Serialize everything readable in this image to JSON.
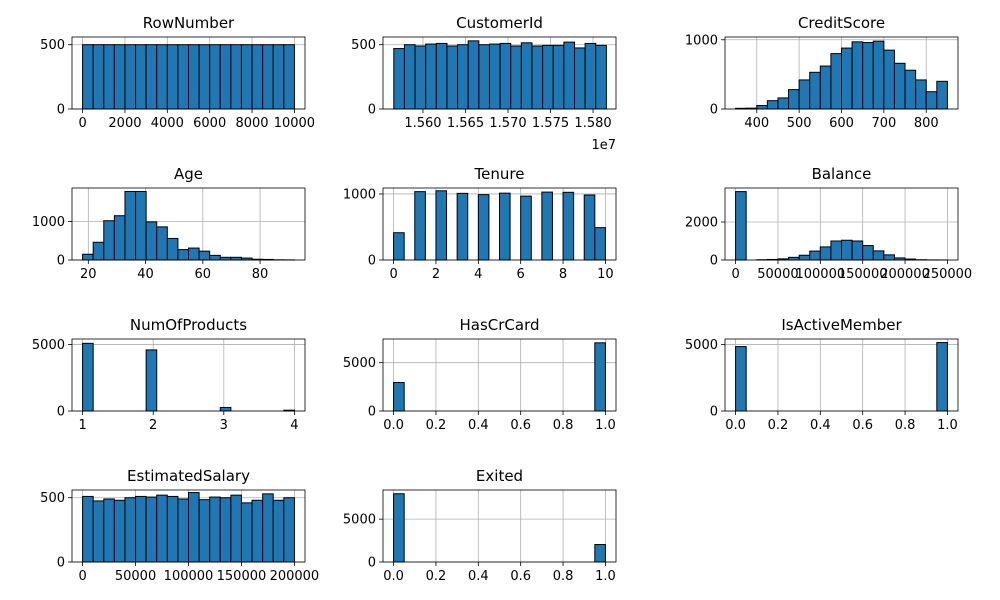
{
  "chart_data": [
    {
      "type": "bar",
      "title": "RowNumber",
      "xlim": [
        -500,
        10500
      ],
      "ylim": [
        0,
        560
      ],
      "xticks": [
        0,
        2000,
        4000,
        6000,
        8000,
        10000
      ],
      "xtick_labels": [
        "0",
        "2000",
        "4000",
        "6000",
        "8000",
        "10000"
      ],
      "yticks": [
        0,
        500
      ],
      "ytick_labels": [
        "0",
        "500"
      ],
      "grid": true,
      "bins": [
        [
          0,
          500,
          500
        ],
        [
          500,
          1000,
          500
        ],
        [
          1000,
          1500,
          500
        ],
        [
          1500,
          2000,
          500
        ],
        [
          2000,
          2500,
          500
        ],
        [
          2500,
          3000,
          500
        ],
        [
          3000,
          3500,
          500
        ],
        [
          3500,
          4000,
          500
        ],
        [
          4000,
          4500,
          500
        ],
        [
          4500,
          5000,
          500
        ],
        [
          5000,
          5500,
          500
        ],
        [
          5500,
          6000,
          500
        ],
        [
          6000,
          6500,
          500
        ],
        [
          6500,
          7000,
          500
        ],
        [
          7000,
          7500,
          500
        ],
        [
          7500,
          8000,
          500
        ],
        [
          8000,
          8500,
          500
        ],
        [
          8500,
          9000,
          500
        ],
        [
          9000,
          9500,
          500
        ],
        [
          9500,
          10000,
          500
        ]
      ]
    },
    {
      "type": "bar",
      "title": "CustomerId",
      "offset_label": "1e7",
      "xlim": [
        15553000,
        15827000
      ],
      "ylim": [
        0,
        560
      ],
      "xticks": [
        15600000,
        15650000,
        15700000,
        15750000,
        15800000
      ],
      "xtick_labels": [
        "1.560",
        "1.565",
        "1.570",
        "1.575",
        "1.580"
      ],
      "yticks": [
        0,
        500
      ],
      "ytick_labels": [
        "0",
        "500"
      ],
      "grid": true,
      "bins": [
        [
          15565700,
          15578200,
          470
        ],
        [
          15578200,
          15590700,
          500
        ],
        [
          15590700,
          15603200,
          490
        ],
        [
          15603200,
          15615700,
          505
        ],
        [
          15615700,
          15628200,
          510
        ],
        [
          15628200,
          15640700,
          490
        ],
        [
          15640700,
          15653200,
          500
        ],
        [
          15653200,
          15665700,
          530
        ],
        [
          15665700,
          15678200,
          500
        ],
        [
          15678200,
          15690700,
          505
        ],
        [
          15690700,
          15703200,
          510
        ],
        [
          15703200,
          15715700,
          490
        ],
        [
          15715700,
          15728200,
          515
        ],
        [
          15728200,
          15740700,
          490
        ],
        [
          15740700,
          15753200,
          495
        ],
        [
          15753200,
          15765700,
          495
        ],
        [
          15765700,
          15778200,
          520
        ],
        [
          15778200,
          15790700,
          475
        ],
        [
          15790700,
          15803200,
          510
        ],
        [
          15803200,
          15815700,
          495
        ]
      ]
    },
    {
      "type": "bar",
      "title": "CreditScore",
      "xlim": [
        325,
        875
      ],
      "ylim": [
        0,
        1040
      ],
      "xticks": [
        400,
        500,
        600,
        700,
        800
      ],
      "xtick_labels": [
        "400",
        "500",
        "600",
        "700",
        "800"
      ],
      "yticks": [
        0,
        1000
      ],
      "ytick_labels": [
        "0",
        "1000"
      ],
      "grid": true,
      "bins": [
        [
          350,
          375,
          10
        ],
        [
          375,
          400,
          12
        ],
        [
          400,
          425,
          50
        ],
        [
          425,
          450,
          120
        ],
        [
          450,
          475,
          160
        ],
        [
          475,
          500,
          280
        ],
        [
          500,
          525,
          420
        ],
        [
          525,
          550,
          530
        ],
        [
          550,
          575,
          620
        ],
        [
          575,
          600,
          800
        ],
        [
          600,
          625,
          880
        ],
        [
          625,
          650,
          970
        ],
        [
          650,
          675,
          960
        ],
        [
          675,
          700,
          980
        ],
        [
          700,
          725,
          850
        ],
        [
          725,
          750,
          660
        ],
        [
          750,
          775,
          560
        ],
        [
          775,
          800,
          420
        ],
        [
          800,
          825,
          250
        ],
        [
          825,
          850,
          400
        ]
      ]
    },
    {
      "type": "bar",
      "title": "Age",
      "xlim": [
        14.3,
        95.7
      ],
      "ylim": [
        0,
        1870
      ],
      "xticks": [
        20,
        40,
        60,
        80
      ],
      "xtick_labels": [
        "20",
        "40",
        "60",
        "80"
      ],
      "yticks": [
        0,
        1000
      ],
      "ytick_labels": [
        "0",
        "1000"
      ],
      "grid": true,
      "bins": [
        [
          18,
          21.7,
          150
        ],
        [
          21.7,
          25.4,
          460
        ],
        [
          25.4,
          29.1,
          1020
        ],
        [
          29.1,
          32.8,
          1150
        ],
        [
          32.8,
          36.5,
          1780
        ],
        [
          36.5,
          40.2,
          1780
        ],
        [
          40.2,
          43.9,
          990
        ],
        [
          43.9,
          47.6,
          860
        ],
        [
          47.6,
          51.3,
          560
        ],
        [
          51.3,
          55.0,
          270
        ],
        [
          55.0,
          58.7,
          310
        ],
        [
          58.7,
          62.4,
          230
        ],
        [
          62.4,
          66.1,
          120
        ],
        [
          66.1,
          69.8,
          70
        ],
        [
          69.8,
          73.5,
          70
        ],
        [
          73.5,
          77.2,
          50
        ],
        [
          77.2,
          80.9,
          20
        ],
        [
          80.9,
          84.6,
          15
        ],
        [
          84.6,
          88.3,
          5
        ],
        [
          88.3,
          92,
          3
        ]
      ]
    },
    {
      "type": "bar",
      "title": "Tenure",
      "xlim": [
        -0.5,
        10.5
      ],
      "ylim": [
        0,
        1090
      ],
      "xticks": [
        0,
        2,
        4,
        6,
        8,
        10
      ],
      "xtick_labels": [
        "0",
        "2",
        "4",
        "6",
        "8",
        "10"
      ],
      "yticks": [
        0,
        1000
      ],
      "ytick_labels": [
        "0",
        "1000"
      ],
      "grid": true,
      "bins": [
        [
          0,
          0.5,
          413
        ],
        [
          1,
          1.5,
          1035
        ],
        [
          2,
          2.5,
          1048
        ],
        [
          3,
          3.5,
          1009
        ],
        [
          4,
          4.5,
          989
        ],
        [
          5,
          5.5,
          1012
        ],
        [
          6,
          6.5,
          967
        ],
        [
          7,
          7.5,
          1028
        ],
        [
          8,
          8.5,
          1025
        ],
        [
          9,
          9.5,
          984
        ],
        [
          9.5,
          10,
          490
        ]
      ]
    },
    {
      "type": "bar",
      "title": "Balance",
      "xlim": [
        -12500,
        262500
      ],
      "ylim": [
        0,
        3790
      ],
      "xticks": [
        0,
        50000,
        100000,
        150000,
        200000,
        250000
      ],
      "xtick_labels": [
        "0",
        "50000",
        "100000",
        "150000",
        "200000",
        "250000"
      ],
      "yticks": [
        0,
        2000
      ],
      "ytick_labels": [
        "0",
        "2000"
      ],
      "grid": true,
      "bins": [
        [
          0,
          12500,
          3600
        ],
        [
          12500,
          25000,
          0
        ],
        [
          25000,
          37500,
          15
        ],
        [
          37500,
          50000,
          30
        ],
        [
          50000,
          62500,
          60
        ],
        [
          62500,
          75000,
          140
        ],
        [
          75000,
          87500,
          250
        ],
        [
          87500,
          100000,
          470
        ],
        [
          100000,
          112500,
          690
        ],
        [
          112500,
          125000,
          1000
        ],
        [
          125000,
          137500,
          1040
        ],
        [
          137500,
          150000,
          1000
        ],
        [
          150000,
          162500,
          760
        ],
        [
          162500,
          175000,
          480
        ],
        [
          175000,
          187500,
          270
        ],
        [
          187500,
          200000,
          110
        ],
        [
          200000,
          212500,
          50
        ],
        [
          212500,
          225000,
          15
        ],
        [
          225000,
          237500,
          5
        ],
        [
          237500,
          250000,
          3
        ]
      ]
    },
    {
      "type": "bar",
      "title": "NumOfProducts",
      "xlim": [
        0.85,
        4.15
      ],
      "ylim": [
        0,
        5410
      ],
      "xticks": [
        1,
        2,
        3,
        4
      ],
      "xtick_labels": [
        "1",
        "2",
        "3",
        "4"
      ],
      "yticks": [
        0,
        5000
      ],
      "ytick_labels": [
        "0",
        "5000"
      ],
      "grid": true,
      "bins": [
        [
          1,
          1.15,
          5084
        ],
        [
          1.9,
          2.05,
          4590
        ],
        [
          2.95,
          3.1,
          266
        ],
        [
          3.85,
          4,
          60
        ]
      ]
    },
    {
      "type": "bar",
      "title": "HasCrCard",
      "xlim": [
        -0.05,
        1.05
      ],
      "ylim": [
        0,
        7450
      ],
      "xticks": [
        0,
        0.2,
        0.4,
        0.6,
        0.8,
        1
      ],
      "xtick_labels": [
        "0.0",
        "0.2",
        "0.4",
        "0.6",
        "0.8",
        "1.0"
      ],
      "yticks": [
        0,
        5000
      ],
      "ytick_labels": [
        "0",
        "5000"
      ],
      "grid": true,
      "bins": [
        [
          0,
          0.05,
          2945
        ],
        [
          0.95,
          1,
          7055
        ]
      ]
    },
    {
      "type": "bar",
      "title": "IsActiveMember",
      "xlim": [
        -0.05,
        1.05
      ],
      "ylim": [
        0,
        5420
      ],
      "xticks": [
        0,
        0.2,
        0.4,
        0.6,
        0.8,
        1
      ],
      "xtick_labels": [
        "0.0",
        "0.2",
        "0.4",
        "0.6",
        "0.8",
        "1.0"
      ],
      "yticks": [
        0,
        5000
      ],
      "ytick_labels": [
        "0",
        "5000"
      ],
      "grid": true,
      "bins": [
        [
          0,
          0.05,
          4849
        ],
        [
          0.95,
          1,
          5151
        ]
      ]
    },
    {
      "type": "bar",
      "title": "EstimatedSalary",
      "xlim": [
        -10000,
        210000
      ],
      "ylim": [
        0,
        560
      ],
      "xticks": [
        0,
        50000,
        100000,
        150000,
        200000
      ],
      "xtick_labels": [
        "0",
        "50000",
        "100000",
        "150000",
        "200000"
      ],
      "yticks": [
        0,
        500
      ],
      "ytick_labels": [
        "0",
        "500"
      ],
      "grid": true,
      "bins": [
        [
          0,
          10000,
          510
        ],
        [
          10000,
          20000,
          475
        ],
        [
          20000,
          30000,
          490
        ],
        [
          30000,
          40000,
          480
        ],
        [
          40000,
          50000,
          500
        ],
        [
          50000,
          60000,
          510
        ],
        [
          60000,
          70000,
          505
        ],
        [
          70000,
          80000,
          520
        ],
        [
          80000,
          90000,
          510
        ],
        [
          90000,
          100000,
          490
        ],
        [
          100000,
          110000,
          540
        ],
        [
          110000,
          120000,
          485
        ],
        [
          120000,
          130000,
          505
        ],
        [
          130000,
          140000,
          500
        ],
        [
          140000,
          150000,
          520
        ],
        [
          150000,
          160000,
          460
        ],
        [
          160000,
          170000,
          480
        ],
        [
          170000,
          180000,
          530
        ],
        [
          180000,
          190000,
          480
        ],
        [
          190000,
          200000,
          500
        ]
      ]
    },
    {
      "type": "bar",
      "title": "Exited",
      "xlim": [
        -0.05,
        1.05
      ],
      "ylim": [
        0,
        8400
      ],
      "xticks": [
        0,
        0.2,
        0.4,
        0.6,
        0.8,
        1
      ],
      "xtick_labels": [
        "0.0",
        "0.2",
        "0.4",
        "0.6",
        "0.8",
        "1.0"
      ],
      "yticks": [
        0,
        5000
      ],
      "ytick_labels": [
        "0",
        "5000"
      ],
      "grid": true,
      "bins": [
        [
          0,
          0.05,
          7963
        ],
        [
          0.95,
          1,
          2037
        ]
      ]
    }
  ]
}
